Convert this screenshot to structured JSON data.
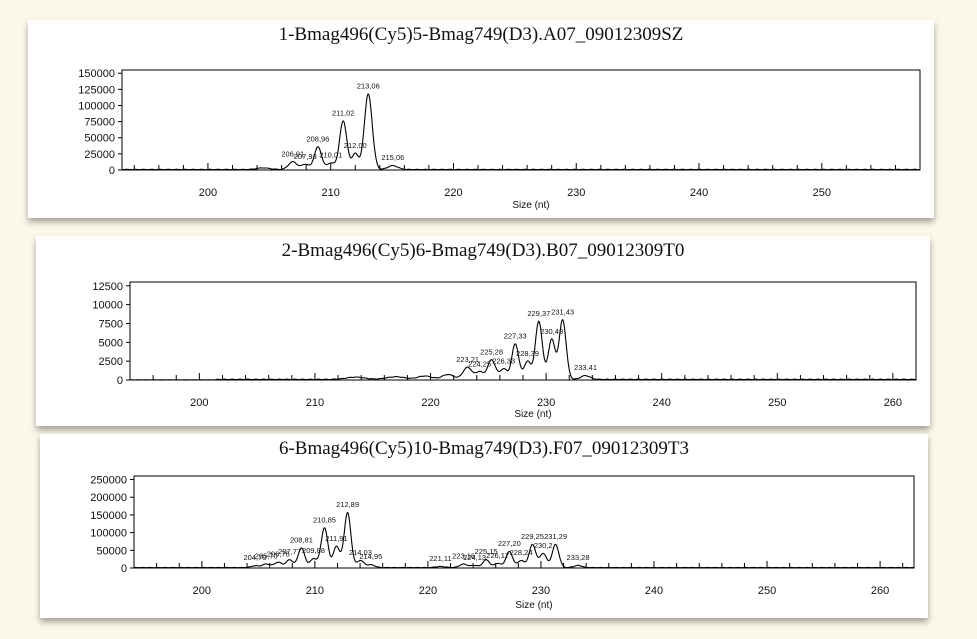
{
  "chart_data": [
    {
      "type": "line",
      "title": "1-Bmag496(Cy5)5-Bmag749(D3).A07_09012309SZ",
      "xlabel": "Size (nt)",
      "ylabel": "",
      "xlim": [
        193,
        258
      ],
      "ylim": [
        0,
        155000
      ],
      "xticks": [
        200,
        210,
        220,
        230,
        240,
        250
      ],
      "yticks": [
        0,
        25000,
        50000,
        75000,
        100000,
        125000,
        150000
      ],
      "ytick_labels": [
        "0",
        "25000",
        "50000",
        "75000",
        "100000",
        "125000",
        "150000"
      ],
      "peaks": [
        {
          "x": 204.5,
          "y": 2500,
          "width": 0.5
        },
        {
          "x": 206.91,
          "y": 12000,
          "width": 0.35,
          "label": "206,91"
        },
        {
          "x": 207.93,
          "y": 8000,
          "width": 0.3,
          "label": "207,93"
        },
        {
          "x": 208.96,
          "y": 35000,
          "width": 0.3,
          "label": "208,96"
        },
        {
          "x": 210.01,
          "y": 10000,
          "width": 0.3,
          "label": "210,01"
        },
        {
          "x": 211.02,
          "y": 75000,
          "width": 0.3,
          "label": "211,02"
        },
        {
          "x": 212.0,
          "y": 25000,
          "width": 0.25,
          "label": "212,00"
        },
        {
          "x": 213.06,
          "y": 117000,
          "width": 0.32,
          "label": "213,06"
        },
        {
          "x": 215.06,
          "y": 6000,
          "width": 0.4,
          "label": "215,06"
        }
      ],
      "baseline": 800
    },
    {
      "type": "line",
      "title": "2-Bmag496(Cy5)6-Bmag749(D3).B07_09012309T0",
      "xlabel": "Size (nt)",
      "ylabel": "",
      "xlim": [
        194,
        262
      ],
      "ylim": [
        0,
        13000
      ],
      "xticks": [
        200,
        210,
        220,
        230,
        240,
        250,
        260
      ],
      "yticks": [
        0,
        2500,
        5000,
        7500,
        10000,
        12500
      ],
      "ytick_labels": [
        "0",
        "2500",
        "5000",
        "7500",
        "10000",
        "12500"
      ],
      "peaks": [
        {
          "x": 213.5,
          "y": 300,
          "width": 0.8
        },
        {
          "x": 217.0,
          "y": 350,
          "width": 0.8
        },
        {
          "x": 219.5,
          "y": 450,
          "width": 0.6
        },
        {
          "x": 221.5,
          "y": 650,
          "width": 0.5
        },
        {
          "x": 223.21,
          "y": 1600,
          "width": 0.4,
          "label": "223,21"
        },
        {
          "x": 224.25,
          "y": 1000,
          "width": 0.3,
          "label": "224,25"
        },
        {
          "x": 225.28,
          "y": 2600,
          "width": 0.35,
          "label": "225,28"
        },
        {
          "x": 226.33,
          "y": 1400,
          "width": 0.3,
          "label": "226,33"
        },
        {
          "x": 227.33,
          "y": 4700,
          "width": 0.3,
          "label": "227,33"
        },
        {
          "x": 228.39,
          "y": 2400,
          "width": 0.3,
          "label": "228,39"
        },
        {
          "x": 229.37,
          "y": 7700,
          "width": 0.3,
          "label": "229,37"
        },
        {
          "x": 230.48,
          "y": 5300,
          "width": 0.3,
          "label": "230,48"
        },
        {
          "x": 231.43,
          "y": 7900,
          "width": 0.3,
          "label": "231,43"
        },
        {
          "x": 233.41,
          "y": 500,
          "width": 0.4,
          "label": "233,41"
        }
      ],
      "baseline": 80
    },
    {
      "type": "line",
      "title": "6-Bmag496(Cy5)10-Bmag749(D3).F07_09012309T3",
      "xlabel": "Size (nt)",
      "ylabel": "",
      "xlim": [
        194,
        263
      ],
      "ylim": [
        0,
        260000
      ],
      "xticks": [
        200,
        210,
        220,
        230,
        240,
        250,
        260
      ],
      "yticks": [
        0,
        50000,
        100000,
        150000,
        200000,
        250000
      ],
      "ytick_labels": [
        "0",
        "50000",
        "100000",
        "150000",
        "200000",
        "250000"
      ],
      "peaks": [
        {
          "x": 204.7,
          "y": 5000,
          "width": 0.35,
          "label": "204,70"
        },
        {
          "x": 205.7,
          "y": 10000,
          "width": 0.35,
          "label": "205,70"
        },
        {
          "x": 206.76,
          "y": 15000,
          "width": 0.35,
          "label": "206,76"
        },
        {
          "x": 207.77,
          "y": 22000,
          "width": 0.3,
          "label": "207,77"
        },
        {
          "x": 208.81,
          "y": 55000,
          "width": 0.3,
          "label": "208,81"
        },
        {
          "x": 209.88,
          "y": 25000,
          "width": 0.3,
          "label": "209,88"
        },
        {
          "x": 210.85,
          "y": 112000,
          "width": 0.3,
          "label": "210,85"
        },
        {
          "x": 211.91,
          "y": 60000,
          "width": 0.28,
          "label": "211,91"
        },
        {
          "x": 212.89,
          "y": 155000,
          "width": 0.3,
          "label": "212,89"
        },
        {
          "x": 214.03,
          "y": 20000,
          "width": 0.3,
          "label": "214,03"
        },
        {
          "x": 214.95,
          "y": 8000,
          "width": 0.35,
          "label": "214,95"
        },
        {
          "x": 221.11,
          "y": 3000,
          "width": 0.4,
          "label": "221,11"
        },
        {
          "x": 223.16,
          "y": 10000,
          "width": 0.35,
          "label": "223,16"
        },
        {
          "x": 224.13,
          "y": 6000,
          "width": 0.3,
          "label": "224,13"
        },
        {
          "x": 225.15,
          "y": 22000,
          "width": 0.3,
          "label": "225,15"
        },
        {
          "x": 226.17,
          "y": 12000,
          "width": 0.3,
          "label": "226,17"
        },
        {
          "x": 227.2,
          "y": 45000,
          "width": 0.3,
          "label": "227,20"
        },
        {
          "x": 228.24,
          "y": 20000,
          "width": 0.3,
          "label": "228,24"
        },
        {
          "x": 229.25,
          "y": 65000,
          "width": 0.3,
          "label": "229,25"
        },
        {
          "x": 230.2,
          "y": 40000,
          "width": 0.3,
          "label": "230,2"
        },
        {
          "x": 231.29,
          "y": 65000,
          "width": 0.3,
          "label": "231,29"
        },
        {
          "x": 233.28,
          "y": 6000,
          "width": 0.35,
          "label": "233,28"
        }
      ],
      "baseline": 1200
    }
  ]
}
